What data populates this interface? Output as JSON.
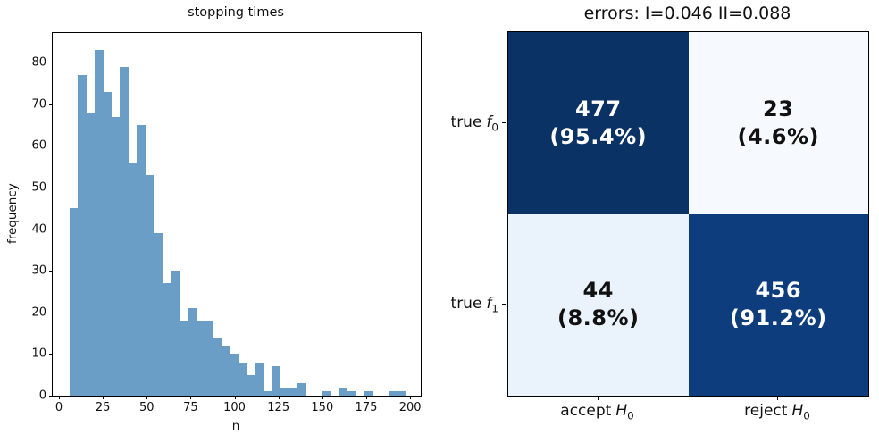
{
  "figure": {
    "background": "#ffffff",
    "text_color": "#111111",
    "spine_color": "#000000"
  },
  "chart_data": [
    {
      "type": "bar",
      "subtype": "histogram",
      "title": "stopping times",
      "xlabel": "n",
      "ylabel": "frequency",
      "bar_color": "#6b9ec7",
      "grid": false,
      "bin_start": 6,
      "bin_width": 4.8,
      "bin_values": [
        45,
        77,
        68,
        83,
        73,
        67,
        79,
        56,
        65,
        53,
        39,
        27,
        30,
        18,
        21,
        18,
        18,
        14,
        12,
        10,
        8,
        5,
        8,
        1,
        7,
        2,
        2,
        3,
        0,
        0,
        1,
        0,
        2,
        1,
        0,
        1,
        0,
        0,
        1,
        1
      ],
      "xticks": [
        0,
        25,
        50,
        75,
        100,
        125,
        150,
        175,
        200
      ],
      "yticks": [
        0,
        10,
        20,
        30,
        40,
        50,
        60,
        70,
        80
      ],
      "xlim": [
        -3.56,
        206.05
      ],
      "ylim": [
        0,
        87.15
      ]
    },
    {
      "type": "heatmap",
      "subtype": "confusion-matrix",
      "title": "errors: I=0.046 II=0.088",
      "row_labels": [
        "true f0",
        "true f1"
      ],
      "col_labels": [
        "accept H0",
        "reject H0"
      ],
      "values": [
        [
          477,
          23
        ],
        [
          44,
          456
        ]
      ],
      "percent": [
        [
          "95.4%",
          "4.6%"
        ],
        [
          "8.8%",
          "91.2%"
        ]
      ],
      "cell_colors": [
        [
          "#0a3264",
          "#f6fafe"
        ],
        [
          "#eaf2fb",
          "#0d3d7c"
        ]
      ],
      "cell_text_colors": [
        [
          "#ffffff",
          "#111111"
        ],
        [
          "#111111",
          "#ffffff"
        ]
      ],
      "legend_position": "none"
    }
  ],
  "matrix": {
    "title": "errors: I=0.046 II=0.088",
    "rows": [
      {
        "prefix": "true",
        "var": "f",
        "sub": "0"
      },
      {
        "prefix": "true",
        "var": "f",
        "sub": "1"
      }
    ],
    "cols": [
      {
        "prefix": "accept",
        "var": "H",
        "sub": "0"
      },
      {
        "prefix": "reject",
        "var": "H",
        "sub": "0"
      }
    ],
    "cells": [
      [
        {
          "count": "477",
          "pct": "(95.4%)"
        },
        {
          "count": "23",
          "pct": "(4.6%)"
        }
      ],
      [
        {
          "count": "44",
          "pct": "(8.8%)"
        },
        {
          "count": "456",
          "pct": "(91.2%)"
        }
      ]
    ]
  }
}
